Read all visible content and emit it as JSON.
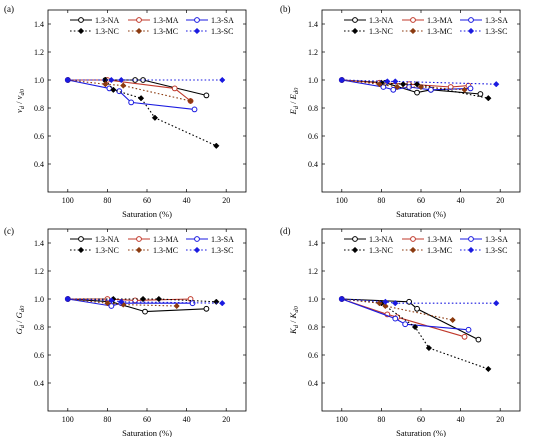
{
  "colors": {
    "NA": "#000000",
    "MA": "#c0392b",
    "SA": "#1a1ae0",
    "NC": "#000000",
    "MC": "#8b3a0f",
    "SC": "#1a1ae0"
  },
  "chart_data": [
    {
      "type": "line",
      "panel_label": "(a)",
      "xlabel": "Saturation (%)",
      "ylabel_main": "v",
      "ylabel_sub": "d",
      "ylabel_sep": " / ",
      "ylabel_main2": "v",
      "ylabel_sub2": "d0",
      "xlim": [
        110,
        10
      ],
      "ylim": [
        0.2,
        1.5
      ],
      "xticks": [
        100,
        80,
        60,
        40,
        20
      ],
      "yticks": [
        0.4,
        0.6,
        0.8,
        1.0,
        1.2,
        1.4
      ],
      "yticklabels": [
        "0.4",
        "0.6",
        "0.8",
        "1.0",
        "1.2",
        "1.4"
      ],
      "series": [
        {
          "name": "1.3-NA",
          "x": [
            100,
            81,
            66,
            62,
            30
          ],
          "y": [
            1.0,
            1.0,
            1.0,
            1.0,
            0.89
          ]
        },
        {
          "name": "1.3-MA",
          "x": [
            100,
            80,
            46,
            38
          ],
          "y": [
            1.0,
            1.0,
            0.94,
            0.85
          ]
        },
        {
          "name": "1.3-SA",
          "x": [
            100,
            79,
            74,
            68,
            36
          ],
          "y": [
            1.0,
            0.94,
            0.92,
            0.84,
            0.79
          ]
        },
        {
          "name": "1.3-NC",
          "x": [
            100,
            81,
            77,
            63,
            56,
            25
          ],
          "y": [
            1.0,
            1.0,
            0.93,
            0.87,
            0.73,
            0.53
          ]
        },
        {
          "name": "1.3-MC",
          "x": [
            100,
            81,
            72,
            38
          ],
          "y": [
            1.0,
            0.97,
            0.96,
            0.85
          ]
        },
        {
          "name": "1.3-SC",
          "x": [
            100,
            78,
            73,
            22
          ],
          "y": [
            1.0,
            1.0,
            1.0,
            1.0
          ]
        }
      ]
    },
    {
      "type": "line",
      "panel_label": "(b)",
      "xlabel": "Saturation (%)",
      "ylabel_main": "E",
      "ylabel_sub": "d",
      "ylabel_sep": " / ",
      "ylabel_main2": "E",
      "ylabel_sub2": "d0",
      "xlim": [
        110,
        10
      ],
      "ylim": [
        0.2,
        1.5
      ],
      "xticks": [
        100,
        80,
        60,
        40,
        20
      ],
      "yticks": [
        0.4,
        0.6,
        0.8,
        1.0,
        1.2,
        1.4
      ],
      "yticklabels": [
        "0.4",
        "0.6",
        "0.8",
        "1.0",
        "1.2",
        "1.4"
      ],
      "series": [
        {
          "name": "1.3-NA",
          "x": [
            100,
            78,
            62,
            55,
            30
          ],
          "y": [
            1.0,
            0.98,
            0.91,
            0.93,
            0.9
          ]
        },
        {
          "name": "1.3-MA",
          "x": [
            100,
            81,
            66,
            45,
            36
          ],
          "y": [
            1.0,
            0.98,
            0.97,
            0.95,
            0.96
          ]
        },
        {
          "name": "1.3-SA",
          "x": [
            100,
            79,
            74,
            66,
            55,
            35
          ],
          "y": [
            1.0,
            0.95,
            0.93,
            0.95,
            0.93,
            0.94
          ]
        },
        {
          "name": "1.3-NC",
          "x": [
            100,
            80,
            69,
            62,
            26
          ],
          "y": [
            1.0,
            0.98,
            0.97,
            0.97,
            0.87
          ]
        },
        {
          "name": "1.3-MC",
          "x": [
            100,
            81,
            72,
            60,
            38
          ],
          "y": [
            1.0,
            0.97,
            0.95,
            0.95,
            0.93
          ]
        },
        {
          "name": "1.3-SC",
          "x": [
            100,
            77,
            73,
            22
          ],
          "y": [
            1.0,
            0.99,
            0.99,
            0.97
          ]
        }
      ]
    },
    {
      "type": "line",
      "panel_label": "(c)",
      "xlabel": "Saturation (%)",
      "ylabel_main": "G",
      "ylabel_sub": "d",
      "ylabel_sep": " / ",
      "ylabel_main2": "G",
      "ylabel_sub2": "d0",
      "xlim": [
        110,
        10
      ],
      "ylim": [
        0.2,
        1.5
      ],
      "xticks": [
        100,
        80,
        60,
        40,
        20
      ],
      "yticks": [
        0.4,
        0.6,
        0.8,
        1.0,
        1.2,
        1.4
      ],
      "yticklabels": [
        "0.4",
        "0.6",
        "0.8",
        "1.0",
        "1.2",
        "1.4"
      ],
      "series": [
        {
          "name": "1.3-NA",
          "x": [
            100,
            78,
            61,
            30
          ],
          "y": [
            1.0,
            0.98,
            0.91,
            0.93
          ]
        },
        {
          "name": "1.3-MA",
          "x": [
            100,
            80,
            66,
            38
          ],
          "y": [
            1.0,
            1.0,
            0.99,
            1.0
          ]
        },
        {
          "name": "1.3-SA",
          "x": [
            100,
            78,
            73,
            37
          ],
          "y": [
            1.0,
            0.95,
            0.97,
            0.97
          ]
        },
        {
          "name": "1.3-NC",
          "x": [
            100,
            77,
            62,
            54,
            25
          ],
          "y": [
            1.0,
            1.0,
            1.0,
            1.0,
            0.98
          ]
        },
        {
          "name": "1.3-MC",
          "x": [
            100,
            80,
            72,
            45
          ],
          "y": [
            1.0,
            0.97,
            0.96,
            0.95
          ]
        },
        {
          "name": "1.3-SC",
          "x": [
            100,
            78,
            73,
            22
          ],
          "y": [
            1.0,
            0.99,
            0.98,
            0.97
          ]
        }
      ]
    },
    {
      "type": "line",
      "panel_label": "(d)",
      "xlabel": "Saturation (%)",
      "ylabel_main": "K",
      "ylabel_sub": "d",
      "ylabel_sep": " / ",
      "ylabel_main2": "K",
      "ylabel_sub2": "d0",
      "xlim": [
        110,
        10
      ],
      "ylim": [
        0.2,
        1.5
      ],
      "xticks": [
        100,
        80,
        60,
        40,
        20
      ],
      "yticks": [
        0.4,
        0.6,
        0.8,
        1.0,
        1.2,
        1.4
      ],
      "yticklabels": [
        "0.4",
        "0.6",
        "0.8",
        "1.0",
        "1.2",
        "1.4"
      ],
      "series": [
        {
          "name": "1.3-NA",
          "x": [
            100,
            66,
            62,
            31
          ],
          "y": [
            1.0,
            0.98,
            0.93,
            0.71
          ]
        },
        {
          "name": "1.3-MA",
          "x": [
            100,
            77,
            72,
            38
          ],
          "y": [
            1.0,
            0.89,
            0.87,
            0.73
          ]
        },
        {
          "name": "1.3-SA",
          "x": [
            100,
            73,
            68,
            36
          ],
          "y": [
            1.0,
            0.86,
            0.82,
            0.78
          ]
        },
        {
          "name": "1.3-NC",
          "x": [
            100,
            80,
            63,
            56,
            26
          ],
          "y": [
            1.0,
            0.97,
            0.8,
            0.65,
            0.5
          ]
        },
        {
          "name": "1.3-MC",
          "x": [
            100,
            81,
            78,
            44
          ],
          "y": [
            1.0,
            0.97,
            0.95,
            0.85
          ]
        },
        {
          "name": "1.3-SC",
          "x": [
            100,
            78,
            73,
            22
          ],
          "y": [
            1.0,
            0.98,
            0.97,
            0.97
          ]
        }
      ]
    }
  ]
}
